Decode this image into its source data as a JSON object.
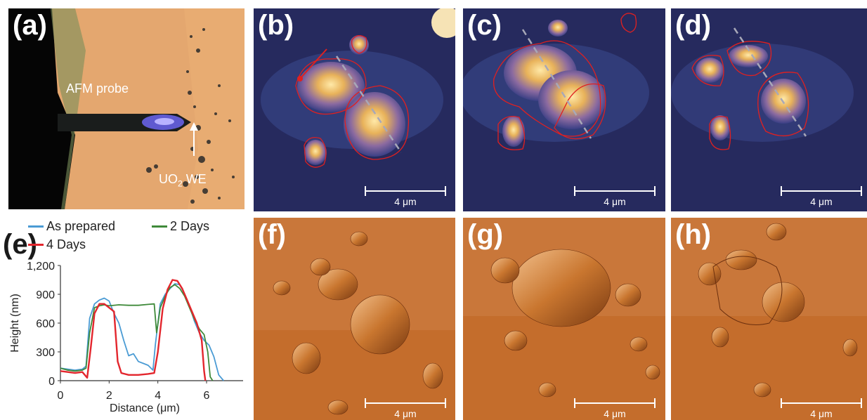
{
  "panels": {
    "a": {
      "label": "(a)",
      "probe_label": "AFM probe",
      "we_label_main": "UO",
      "we_label_sub": "2",
      "we_label_tail": " WE"
    },
    "b": {
      "label": "(b)",
      "scale": "4 μm"
    },
    "c": {
      "label": "(c)",
      "scale": "4 μm"
    },
    "d": {
      "label": "(d)",
      "scale": "4 μm"
    },
    "f": {
      "label": "(f)",
      "scale": "4 μm"
    },
    "g": {
      "label": "(g)",
      "scale": "4 μm"
    },
    "h": {
      "label": "(h)",
      "scale": "4 μm"
    },
    "e": {
      "label": "(e)"
    }
  },
  "colors": {
    "as_prepared": "#4a9bd4",
    "two_days": "#3f8a3a",
    "four_days": "#e3262d",
    "grain_outline": "#e02020"
  },
  "chart_data": {
    "type": "line",
    "xlabel": "Distance (μm)",
    "ylabel": "Height (nm)",
    "xlim": [
      0,
      7.5
    ],
    "ylim": [
      0,
      1200
    ],
    "xticks": [
      "0",
      "2",
      "4",
      "6"
    ],
    "yticks": [
      "0",
      "300",
      "600",
      "900",
      "1,200"
    ],
    "legend_position": "top",
    "series": [
      {
        "name": "As prepared",
        "color": "#4a9bd4",
        "x": [
          0,
          0.3,
          0.6,
          0.9,
          1.05,
          1.2,
          1.4,
          1.6,
          1.8,
          2.0,
          2.2,
          2.4,
          2.6,
          2.8,
          3.0,
          3.2,
          3.4,
          3.6,
          3.8,
          3.9,
          4.1,
          4.3,
          4.5,
          4.7,
          4.9,
          5.1,
          5.3,
          5.5,
          5.7,
          5.9,
          6.1,
          6.3,
          6.5,
          6.7
        ],
        "y": [
          130,
          120,
          110,
          120,
          150,
          650,
          800,
          840,
          860,
          830,
          700,
          600,
          420,
          260,
          280,
          200,
          180,
          160,
          110,
          380,
          800,
          900,
          960,
          1010,
          1000,
          900,
          780,
          620,
          500,
          420,
          370,
          250,
          60,
          0
        ]
      },
      {
        "name": "2 Days",
        "color": "#3f8a3a",
        "x": [
          0,
          0.3,
          0.6,
          0.9,
          1.05,
          1.2,
          1.4,
          1.6,
          1.8,
          2.0,
          2.4,
          2.8,
          3.2,
          3.6,
          3.85,
          3.95,
          4.1,
          4.3,
          4.5,
          4.7,
          4.9,
          5.1,
          5.3,
          5.5,
          5.7,
          5.9,
          6.05,
          6.15,
          6.25
        ],
        "y": [
          130,
          110,
          100,
          110,
          130,
          500,
          760,
          780,
          790,
          780,
          790,
          785,
          785,
          795,
          800,
          500,
          760,
          880,
          970,
          1000,
          960,
          880,
          760,
          640,
          540,
          480,
          300,
          40,
          0
        ]
      },
      {
        "name": "4 Days",
        "color": "#e3262d",
        "x": [
          0,
          0.3,
          0.6,
          0.9,
          1.0,
          1.1,
          1.25,
          1.4,
          1.6,
          1.8,
          2.0,
          2.2,
          2.35,
          2.5,
          2.8,
          3.2,
          3.6,
          3.85,
          4.0,
          4.2,
          4.4,
          4.6,
          4.8,
          5.0,
          5.2,
          5.4,
          5.6,
          5.8,
          5.9,
          5.95
        ],
        "y": [
          100,
          90,
          80,
          90,
          60,
          30,
          350,
          700,
          800,
          800,
          760,
          720,
          200,
          80,
          60,
          60,
          70,
          80,
          300,
          750,
          950,
          1050,
          1040,
          960,
          840,
          720,
          600,
          420,
          100,
          0
        ]
      }
    ]
  }
}
